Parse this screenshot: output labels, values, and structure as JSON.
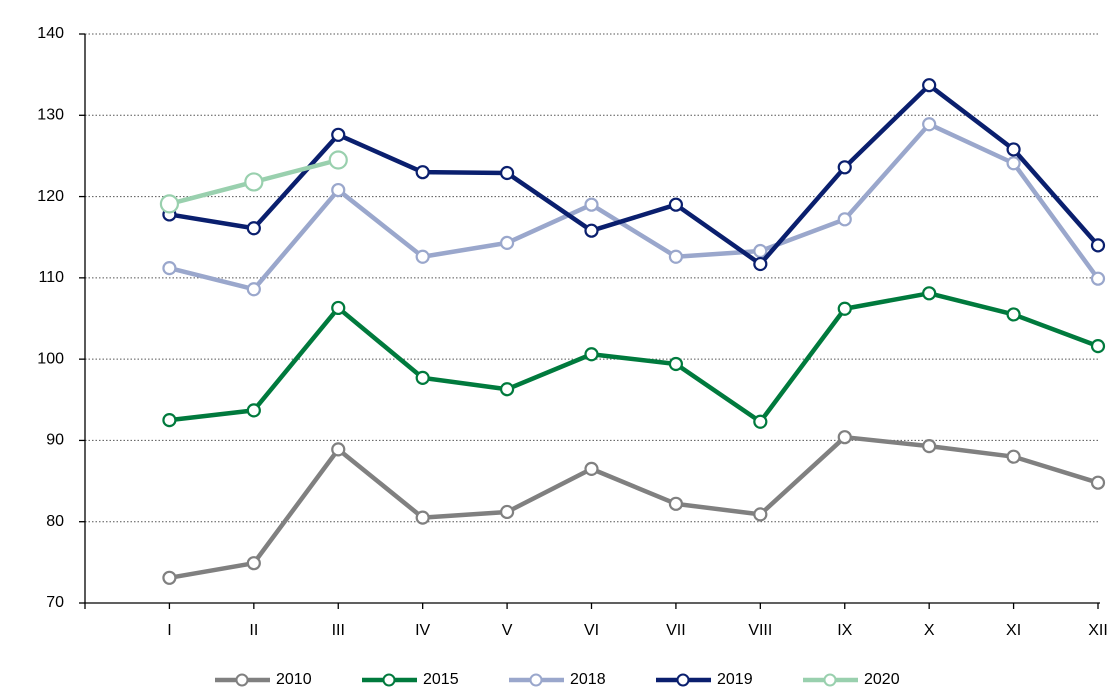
{
  "chart_data": {
    "type": "line",
    "categories": [
      null,
      "I",
      "II",
      "III",
      "IV",
      "V",
      "VI",
      "VII",
      "VIII",
      "IX",
      "X",
      "XI",
      "XII"
    ],
    "series": [
      {
        "name": "2010",
        "color": "#808080",
        "values": [
          null,
          73.1,
          74.9,
          88.9,
          80.5,
          81.2,
          86.5,
          82.2,
          80.9,
          90.4,
          89.3,
          88.0,
          84.8
        ]
      },
      {
        "name": "2015",
        "color": "#007a3d",
        "values": [
          null,
          92.5,
          93.7,
          106.3,
          97.7,
          96.3,
          100.6,
          99.4,
          92.3,
          106.2,
          108.1,
          105.5,
          101.6
        ]
      },
      {
        "name": "2018",
        "color": "#9aa7cc",
        "values": [
          null,
          111.2,
          108.6,
          120.8,
          112.6,
          114.3,
          119.0,
          112.6,
          113.3,
          117.2,
          128.9,
          124.1,
          109.9
        ]
      },
      {
        "name": "2019",
        "color": "#0a1f6e",
        "values": [
          null,
          117.8,
          116.1,
          127.6,
          123.0,
          122.9,
          115.8,
          119.0,
          111.7,
          123.6,
          133.7,
          125.8,
          114.0
        ]
      },
      {
        "name": "2020",
        "color": "#99d0ae",
        "values": [
          null,
          119.1,
          121.8,
          124.5,
          null,
          null,
          null,
          null,
          null,
          null,
          null,
          null,
          null
        ]
      }
    ],
    "ylim": [
      70,
      140
    ],
    "yticks": [
      70,
      80,
      90,
      100,
      110,
      120,
      130,
      140
    ],
    "grid": true
  }
}
